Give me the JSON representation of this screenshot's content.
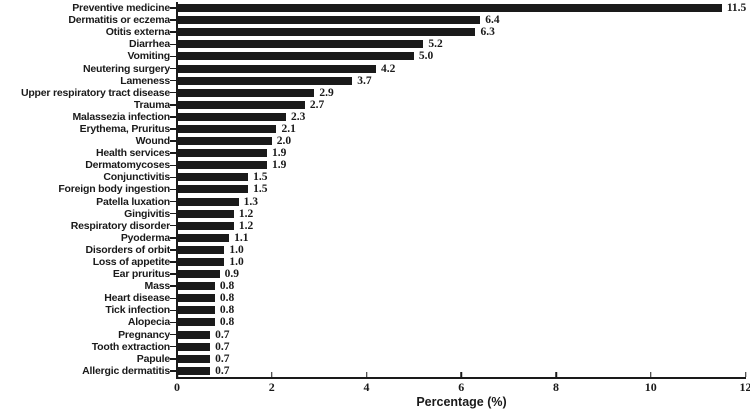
{
  "chart_data": {
    "type": "bar",
    "orientation": "horizontal",
    "title": "",
    "xlabel": "Percentage (%)",
    "ylabel": "",
    "xlim": [
      0,
      12
    ],
    "xticks": [
      0,
      2,
      4,
      6,
      8,
      10,
      12
    ],
    "grid": false,
    "legend": false,
    "value_labels": true,
    "bar_color": "#1a1a1a",
    "background_color": "#ffffff",
    "categories": [
      "Preventive medicine",
      "Dermatitis or eczema",
      "Otitis externa",
      "Diarrhea",
      "Vomiting",
      "Neutering surgery",
      "Lameness",
      "Upper respiratory tract disease",
      "Trauma",
      "Malassezia infection",
      "Erythema, Pruritus",
      "Wound",
      "Health services",
      "Dermatomycoses",
      "Conjunctivitis",
      "Foreign body ingestion",
      "Patella luxation",
      "Gingivitis",
      "Respiratory disorder",
      "Pyoderma",
      "Disorders of orbit",
      "Loss of appetite",
      "Ear pruritus",
      "Mass",
      "Heart disease",
      "Tick infection",
      "Alopecia",
      "Pregnancy",
      "Tooth extraction",
      "Papule",
      "Allergic dermatitis"
    ],
    "values": [
      11.5,
      6.4,
      6.3,
      5.2,
      5.0,
      4.2,
      3.7,
      2.9,
      2.7,
      2.3,
      2.1,
      2.0,
      1.9,
      1.9,
      1.5,
      1.5,
      1.3,
      1.2,
      1.2,
      1.1,
      1.0,
      1.0,
      0.9,
      0.8,
      0.8,
      0.8,
      0.8,
      0.7,
      0.7,
      0.7,
      0.7
    ]
  }
}
